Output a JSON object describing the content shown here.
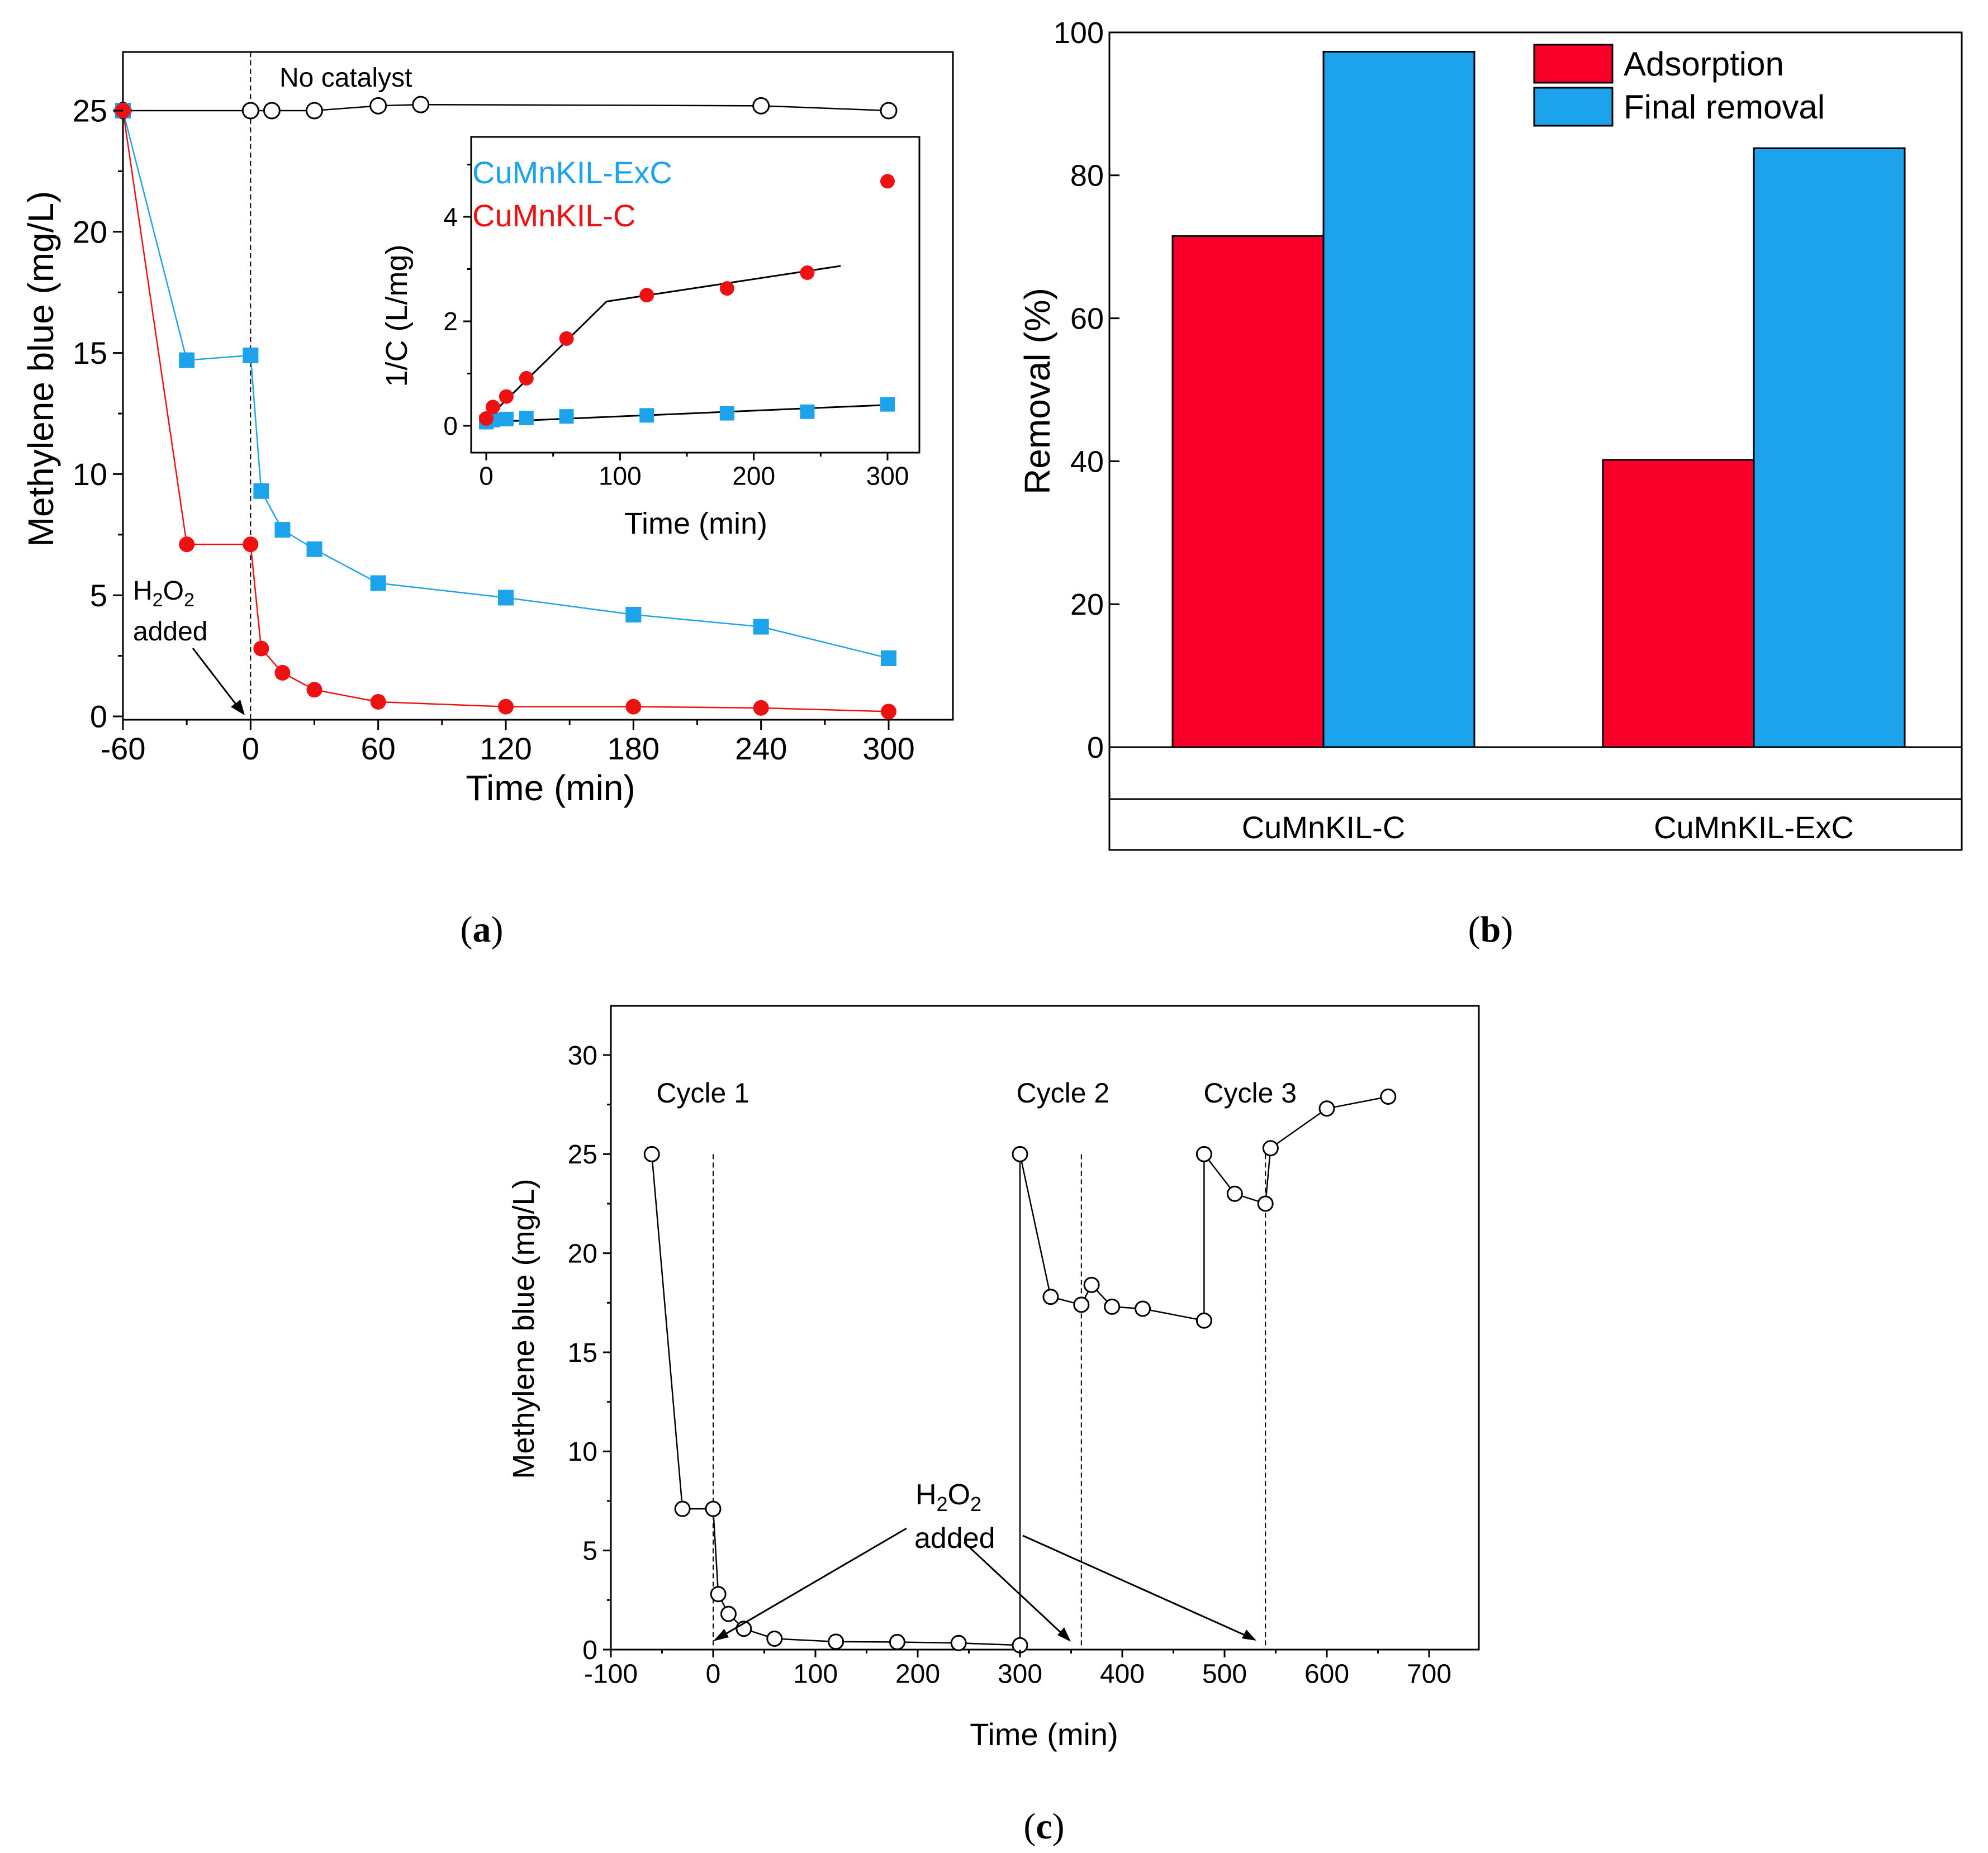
{
  "chart_data": [
    {
      "id": "a",
      "type": "line",
      "caption": "a",
      "xlabel": "Time (min)",
      "ylabel": "Methylene blue (mg/L)",
      "xlim": [
        -60,
        330
      ],
      "ylim": [
        0,
        27.5
      ],
      "xticks": [
        "-60",
        "0",
        "60",
        "120",
        "180",
        "240",
        "300"
      ],
      "xtick_values": [
        -60,
        0,
        60,
        120,
        180,
        240,
        300
      ],
      "yticks": [
        "0",
        "5",
        "10",
        "15",
        "20",
        "25"
      ],
      "ytick_values": [
        0,
        5,
        10,
        15,
        20,
        25
      ],
      "vline_x": 0,
      "annotations": {
        "no_catalyst": "No catalyst",
        "h2o2_main": "H",
        "h2o2_sub1": "2",
        "h2o2_o": "O",
        "h2o2_sub2": "2",
        "added": "added"
      },
      "series": [
        {
          "name": "No catalyst",
          "marker": "circle-open",
          "color": "#000000",
          "x": [
            -60,
            0,
            10,
            30,
            60,
            80,
            240,
            300
          ],
          "y": [
            25.0,
            25.0,
            25.0,
            25.0,
            25.2,
            25.25,
            25.2,
            25.0
          ]
        },
        {
          "name": "CuMnKIL-ExC",
          "marker": "square",
          "color": "#1ca3ec",
          "x": [
            -60,
            -30,
            0,
            5,
            15,
            30,
            60,
            120,
            180,
            240,
            300
          ],
          "y": [
            25.0,
            14.7,
            14.9,
            9.3,
            7.7,
            6.9,
            5.5,
            4.9,
            4.2,
            3.7,
            2.4
          ]
        },
        {
          "name": "CuMnKIL-C",
          "marker": "circle",
          "color": "#ee1111",
          "x": [
            -60,
            -30,
            0,
            5,
            15,
            30,
            60,
            120,
            180,
            240,
            300
          ],
          "y": [
            25.0,
            7.1,
            7.1,
            2.8,
            1.8,
            1.1,
            0.6,
            0.4,
            0.4,
            0.35,
            0.2
          ]
        }
      ],
      "inset": {
        "xlabel": "Time (min)",
        "ylabel": "1/C (L/mg)",
        "xlim": [
          -12,
          320
        ],
        "ylim": [
          -0.3,
          5.4
        ],
        "xticks": [
          "0",
          "100",
          "200",
          "300"
        ],
        "xtick_values": [
          0,
          100,
          200,
          300
        ],
        "yticks": [
          "0",
          "2",
          "4"
        ],
        "ytick_values": [
          0,
          2,
          4
        ],
        "legend": [
          {
            "label": "CuMnKIL-ExC",
            "color": "#1ca3ec"
          },
          {
            "label": "CuMnKIL-C",
            "color": "#ee1111"
          }
        ],
        "series": [
          {
            "name": "CuMnKIL-ExC",
            "marker": "square",
            "color": "#1ca3ec",
            "x": [
              0,
              5,
              15,
              30,
              60,
              120,
              180,
              240,
              300
            ],
            "y": [
              0.07,
              0.11,
              0.13,
              0.15,
              0.18,
              0.2,
              0.24,
              0.27,
              0.41
            ]
          },
          {
            "name": "CuMnKIL-C",
            "marker": "circle",
            "color": "#ee1111",
            "x": [
              0,
              5,
              15,
              30,
              60,
              120,
              180,
              240,
              300
            ],
            "y": [
              0.14,
              0.36,
              0.56,
              0.91,
              1.67,
              2.5,
              2.63,
              2.93,
              4.68
            ]
          }
        ],
        "fits": [
          {
            "x": [
              0,
              90
            ],
            "y": [
              0.12,
              2.38
            ]
          },
          {
            "x": [
              90,
              265
            ],
            "y": [
              2.38,
              3.06
            ]
          },
          {
            "x": [
              0,
              300
            ],
            "y": [
              0.07,
              0.4
            ]
          }
        ]
      }
    },
    {
      "id": "b",
      "type": "bar",
      "caption": "b",
      "ylabel": "Removal (%)",
      "ylim": [
        0,
        100
      ],
      "yticks": [
        "0",
        "20",
        "40",
        "60",
        "80",
        "100"
      ],
      "ytick_values": [
        0,
        20,
        40,
        60,
        80,
        100
      ],
      "categories": [
        "CuMnKIL-C",
        "CuMnKIL-ExC"
      ],
      "series": [
        {
          "name": "Adsorption",
          "color": "#f8002a",
          "values": [
            71.5,
            40.2
          ]
        },
        {
          "name": "Final removal",
          "color": "#1ca3ec",
          "values": [
            97.3,
            83.8
          ]
        }
      ],
      "legend_position": "top-right"
    },
    {
      "id": "c",
      "type": "line",
      "caption": "c",
      "xlabel": "Time (min)",
      "ylabel": "Methylene blue (mg/L)",
      "xlim": [
        -100,
        750
      ],
      "ylim": [
        0,
        32.5
      ],
      "xticks": [
        "-100",
        "0",
        "100",
        "200",
        "300",
        "400",
        "500",
        "600",
        "700"
      ],
      "xtick_values": [
        -100,
        0,
        100,
        200,
        300,
        400,
        500,
        600,
        700
      ],
      "yticks": [
        "0",
        "5",
        "10",
        "15",
        "20",
        "25",
        "30"
      ],
      "ytick_values": [
        0,
        5,
        10,
        15,
        20,
        25,
        30
      ],
      "vlines": [
        0,
        360,
        540
      ],
      "cycle_labels": [
        {
          "label": "Cycle 1",
          "x": -10
        },
        {
          "label": "Cycle 2",
          "x": 342
        },
        {
          "label": "Cycle 3",
          "x": 525
        }
      ],
      "annotations": {
        "h2o2_main": "H",
        "h2o2_sub1": "2",
        "h2o2_o": "O",
        "h2o2_sub2": "2",
        "added": "added"
      },
      "series": [
        {
          "name": "Methylene blue",
          "marker": "circle-open",
          "color": "#000000",
          "x": [
            -60,
            -30,
            0,
            5,
            15,
            30,
            60,
            120,
            180,
            240,
            300,
            300,
            330,
            360,
            370,
            390,
            420,
            480,
            480,
            510,
            540,
            545,
            600,
            660
          ],
          "y": [
            25.0,
            7.1,
            7.1,
            2.8,
            1.8,
            1.05,
            0.55,
            0.4,
            0.38,
            0.33,
            0.22,
            25.0,
            17.8,
            17.4,
            18.4,
            17.3,
            17.2,
            16.6,
            25.0,
            23.0,
            22.5,
            25.3,
            27.3,
            27.9
          ]
        }
      ]
    }
  ]
}
